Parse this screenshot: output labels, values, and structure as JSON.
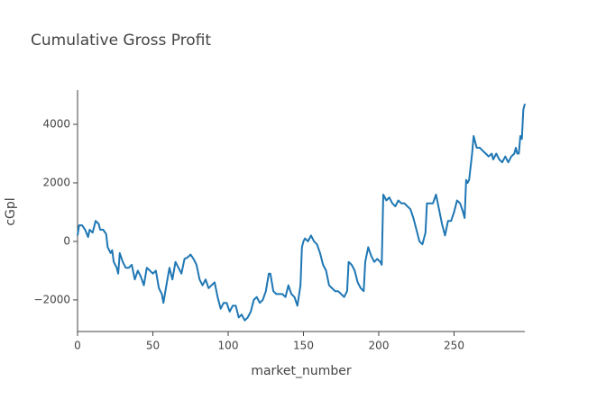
{
  "chart_data": {
    "type": "line",
    "title": "Cumulative Gross Profit",
    "x_label": "market_number",
    "y_label": "cGpl",
    "color": "#1f77b4",
    "x": [
      0,
      1,
      3,
      5,
      7,
      8,
      10,
      11,
      12,
      14,
      15,
      17,
      19,
      20,
      22,
      23,
      24,
      26,
      27,
      28,
      30,
      32,
      34,
      36,
      38,
      40,
      42,
      44,
      46,
      48,
      50,
      52,
      54,
      56,
      57,
      59,
      61,
      63,
      65,
      67,
      69,
      71,
      73,
      75,
      77,
      79,
      81,
      83,
      85,
      87,
      89,
      91,
      93,
      95,
      97,
      99,
      101,
      103,
      105,
      107,
      109,
      111,
      113,
      115,
      117,
      119,
      121,
      123,
      125,
      127,
      128,
      130,
      132,
      134,
      136,
      138,
      140,
      142,
      144,
      146,
      148,
      149,
      150,
      151,
      153,
      155,
      157,
      159,
      161,
      163,
      165,
      167,
      169,
      171,
      173,
      175,
      177,
      179,
      180,
      182,
      184,
      186,
      188,
      190,
      191,
      193,
      195,
      197,
      199,
      201,
      202,
      203,
      205,
      207,
      209,
      211,
      213,
      215,
      217,
      219,
      221,
      223,
      225,
      227,
      229,
      231,
      232,
      234,
      236,
      238,
      240,
      242,
      244,
      246,
      248,
      250,
      252,
      254,
      256,
      257,
      258,
      259,
      260,
      262,
      263,
      265,
      267,
      269,
      271,
      273,
      275,
      276,
      278,
      280,
      282,
      284,
      286,
      288,
      290,
      291,
      292,
      293,
      294,
      295,
      296,
      297
    ],
    "values": [
      200,
      550,
      550,
      400,
      150,
      400,
      300,
      500,
      700,
      600,
      400,
      400,
      250,
      -200,
      -400,
      -300,
      -700,
      -900,
      -1100,
      -400,
      -700,
      -900,
      -900,
      -800,
      -1300,
      -1000,
      -1200,
      -1500,
      -900,
      -1000,
      -1100,
      -1000,
      -1600,
      -1800,
      -2100,
      -1500,
      -900,
      -1300,
      -700,
      -900,
      -1100,
      -600,
      -550,
      -450,
      -600,
      -800,
      -1300,
      -1500,
      -1300,
      -1600,
      -1500,
      -1400,
      -1900,
      -2300,
      -2100,
      -2100,
      -2400,
      -2200,
      -2200,
      -2600,
      -2500,
      -2700,
      -2600,
      -2400,
      -2000,
      -1900,
      -2100,
      -2000,
      -1700,
      -1100,
      -1100,
      -1700,
      -1800,
      -1800,
      -1800,
      -1900,
      -1500,
      -1800,
      -1900,
      -2200,
      -1500,
      -200,
      0,
      100,
      0,
      200,
      0,
      -100,
      -400,
      -800,
      -1000,
      -1500,
      -1600,
      -1700,
      -1700,
      -1800,
      -1900,
      -1700,
      -700,
      -800,
      -1000,
      -1400,
      -1600,
      -1700,
      -700,
      -200,
      -500,
      -700,
      -600,
      -700,
      -800,
      1600,
      1400,
      1500,
      1300,
      1200,
      1400,
      1300,
      1300,
      1200,
      1100,
      800,
      400,
      0,
      -100,
      300,
      1300,
      1300,
      1300,
      1600,
      1100,
      600,
      200,
      700,
      700,
      1000,
      1400,
      1300,
      1000,
      800,
      2100,
      2000,
      2100,
      3000,
      3600,
      3200,
      3200,
      3100,
      3000,
      2900,
      3000,
      2800,
      3000,
      2800,
      2700,
      2900,
      2700,
      2900,
      3000,
      3200,
      3000,
      3000,
      3600,
      3500,
      4500,
      4700
    ],
    "xlim": [
      0,
      297
    ],
    "ylim": [
      -3080,
      5170
    ],
    "xticks": [
      0,
      50,
      100,
      150,
      200,
      250
    ],
    "yticks": [
      {
        "value": -2000,
        "label": "−2000"
      },
      0,
      2000,
      4000
    ]
  }
}
